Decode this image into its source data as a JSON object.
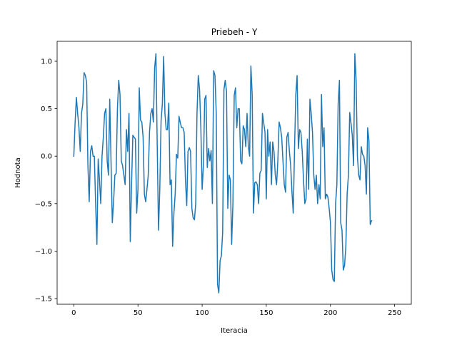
{
  "chart_data": {
    "type": "line",
    "title": "Priebeh - Y",
    "xlabel": "Iteracia",
    "ylabel": "Hodnota",
    "xlim": [
      -13,
      263
    ],
    "ylim": [
      -1.56,
      1.21
    ],
    "grid": false,
    "xticks": [
      0,
      50,
      100,
      150,
      200,
      250
    ],
    "yticks": [
      -1.5,
      -1.0,
      -0.5,
      0.0,
      0.5,
      1.0
    ],
    "xtick_labels": [
      "0",
      "50",
      "100",
      "150",
      "200",
      "250"
    ],
    "ytick_labels": [
      "−1.5",
      "−1.0",
      "−0.5",
      "0.0",
      "0.5",
      "1.0"
    ],
    "series": [
      {
        "color": "#1f77b4",
        "x_start": 0,
        "x_step": 1,
        "values": [
          0.0,
          0.35,
          0.62,
          0.45,
          0.3,
          0.05,
          0.45,
          0.55,
          0.88,
          0.85,
          0.78,
          -0.1,
          -0.48,
          0.05,
          0.11,
          0.0,
          0.0,
          -0.5,
          -0.93,
          -0.03,
          -0.25,
          -0.5,
          0.0,
          0.2,
          0.45,
          0.5,
          -0.05,
          -0.2,
          0.6,
          -0.05,
          -0.7,
          -0.48,
          -0.2,
          -0.18,
          0.5,
          0.8,
          0.65,
          -0.05,
          -0.1,
          -0.2,
          -0.3,
          0.28,
          0.05,
          0.45,
          -0.9,
          -0.3,
          0.22,
          0.2,
          0.18,
          -0.6,
          -0.35,
          0.72,
          0.38,
          0.36,
          0.2,
          -0.4,
          -0.48,
          -0.35,
          -0.2,
          0.25,
          0.45,
          0.5,
          0.36,
          0.93,
          1.08,
          0.12,
          -0.78,
          -0.35,
          0.37,
          0.55,
          1.05,
          0.45,
          0.28,
          0.28,
          0.56,
          -0.3,
          -0.25,
          -0.95,
          -0.6,
          -0.4,
          0.02,
          -0.02,
          0.42,
          0.35,
          0.3,
          0.3,
          0.25,
          -0.25,
          -0.52,
          0.05,
          0.09,
          0.05,
          -0.55,
          -0.65,
          -0.67,
          -0.5,
          0.45,
          0.85,
          0.7,
          0.3,
          -0.35,
          -0.1,
          0.6,
          0.64,
          -0.12,
          0.08,
          -0.05,
          0.06,
          -0.5,
          0.9,
          0.85,
          0.45,
          -1.35,
          -1.44,
          -1.1,
          -1.05,
          -0.8,
          0.7,
          0.8,
          0.68,
          -0.55,
          -0.2,
          -0.25,
          -0.93,
          -0.5,
          0.64,
          0.72,
          0.3,
          0.5,
          0.5,
          -0.05,
          -0.08,
          0.32,
          0.28,
          0.1,
          0.45,
          0.1,
          0.0,
          0.95,
          0.65,
          -0.6,
          -0.28,
          -0.27,
          -0.3,
          -0.5,
          -0.18,
          -0.15,
          0.45,
          0.35,
          0.25,
          -0.45,
          0.28,
          0.0,
          0.15,
          -0.3,
          0.15,
          0.05,
          -0.2,
          -0.3,
          -0.05,
          0.36,
          0.3,
          0.2,
          -0.05,
          -0.3,
          -0.38,
          0.2,
          0.25,
          0.05,
          -0.1,
          -0.38,
          -0.6,
          0.07,
          0.65,
          0.85,
          0.08,
          0.28,
          0.25,
          0.05,
          -0.25,
          -0.5,
          -0.45,
          0.18,
          -0.35,
          0.6,
          0.45,
          0.25,
          -0.2,
          -0.35,
          -0.2,
          -0.5,
          -0.3,
          -0.45,
          0.65,
          0.1,
          0.3,
          -0.45,
          -0.4,
          -0.43,
          -0.55,
          -0.7,
          -1.2,
          -1.3,
          -1.32,
          -0.5,
          -0.3,
          0.55,
          0.8,
          -0.7,
          -0.78,
          -1.2,
          -1.15,
          -0.95,
          -0.4,
          -0.2,
          0.46,
          0.35,
          0.22,
          -0.1,
          1.08,
          0.8,
          0.0,
          -0.2,
          -0.25,
          0.1,
          0.02,
          0.0,
          -0.1,
          -0.4,
          0.3,
          0.16,
          -0.72,
          -0.68
        ]
      }
    ]
  }
}
